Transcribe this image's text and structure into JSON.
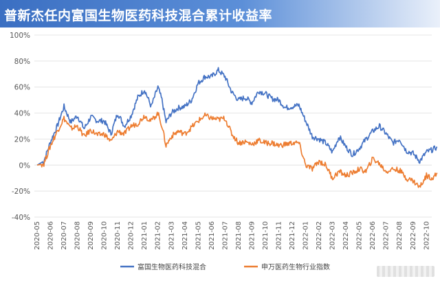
{
  "header": {
    "title": "普新杰任内富国生物医药科技混合累计收益率"
  },
  "colors": {
    "fund": "#4472c4",
    "index": "#ed7d31",
    "grid": "#e4e4e4",
    "header_bg": "#4a7bd0"
  },
  "chart_data": {
    "type": "line",
    "title": "普新杰任内富国生物医药科技混合累计收益率",
    "ylim": [
      -40,
      100
    ],
    "y_ticks": [
      "100%",
      "80%",
      "60%",
      "40%",
      "20%",
      "0%",
      "-20%",
      "-40%"
    ],
    "y_tick_values": [
      100,
      80,
      60,
      40,
      20,
      0,
      -20,
      -40
    ],
    "categories": [
      "2020-05",
      "2020-06",
      "2020-07",
      "2020-08",
      "2020-09",
      "2020-10",
      "2020-11",
      "2020-12",
      "2021-01",
      "2021-02",
      "2021-03",
      "2021-04",
      "2021-05",
      "2021-06",
      "2021-07",
      "2021-08",
      "2021-09",
      "2021-10",
      "2021-11",
      "2021-12",
      "2022-01",
      "2022-02",
      "2022-03",
      "2022-04",
      "2022-05",
      "2022-06",
      "2022-07",
      "2022-08",
      "2022-09",
      "2022-10"
    ],
    "grid": true,
    "legend_position": "bottom",
    "series": [
      {
        "name": "富国生物医药科技混合",
        "color": "#4472c4",
        "x": [
          0,
          0.5,
          1,
          1.5,
          2,
          2.5,
          3,
          3.5,
          4,
          4.5,
          5,
          5.5,
          6,
          6.5,
          7,
          7.5,
          8,
          8.5,
          9,
          9.3,
          9.6,
          10,
          10.5,
          11,
          11.5,
          12,
          12.5,
          13,
          13.5,
          14,
          14.5,
          15,
          15.5,
          16,
          16.5,
          17,
          17.5,
          18,
          18.5,
          19,
          19.5,
          20,
          20.5,
          21,
          21.5,
          22,
          22.5,
          23,
          23.5,
          24,
          24.5,
          25,
          25.5,
          26,
          26.5,
          27,
          27.5,
          28,
          28.5,
          29,
          29.5,
          29.8
        ],
        "values": [
          0,
          3,
          18,
          30,
          45,
          33,
          38,
          28,
          37,
          34,
          34,
          24,
          40,
          30,
          38,
          52,
          58,
          45,
          60,
          50,
          33,
          40,
          44,
          45,
          50,
          63,
          68,
          68,
          73,
          68,
          56,
          50,
          52,
          48,
          57,
          55,
          51,
          50,
          44,
          45,
          46,
          34,
          22,
          20,
          17,
          10,
          22,
          14,
          8,
          13,
          20,
          26,
          30,
          24,
          17,
          20,
          11,
          9,
          3,
          10,
          12,
          14
        ]
      },
      {
        "name": "申万医药生物行业指数",
        "color": "#ed7d31",
        "x": [
          0,
          0.5,
          1,
          1.5,
          2,
          2.5,
          3,
          3.5,
          4,
          4.5,
          5,
          5.5,
          6,
          6.5,
          7,
          7.5,
          8,
          8.5,
          9,
          9.3,
          9.6,
          10,
          10.5,
          11,
          11.5,
          12,
          12.5,
          13,
          13.5,
          14,
          14.5,
          15,
          15.5,
          16,
          16.5,
          17,
          17.5,
          18,
          18.5,
          19,
          19.5,
          20,
          20.5,
          21,
          21.5,
          22,
          22.5,
          23,
          23.5,
          24,
          24.5,
          25,
          25.5,
          26,
          26.5,
          27,
          27.5,
          28,
          28.5,
          29,
          29.5,
          29.8
        ],
        "values": [
          0,
          1,
          15,
          26,
          36,
          28,
          30,
          22,
          27,
          23,
          24,
          18,
          26,
          24,
          30,
          32,
          38,
          34,
          40,
          30,
          15,
          22,
          26,
          24,
          29,
          34,
          38,
          36,
          35,
          36,
          24,
          17,
          18,
          16,
          19,
          17,
          17,
          15,
          16,
          17,
          17,
          0,
          -3,
          3,
          0,
          -10,
          -5,
          -8,
          -6,
          -3,
          -5,
          5,
          1,
          -5,
          -3,
          -4,
          -10,
          -12,
          -17,
          -8,
          -10,
          -6
        ]
      }
    ]
  }
}
